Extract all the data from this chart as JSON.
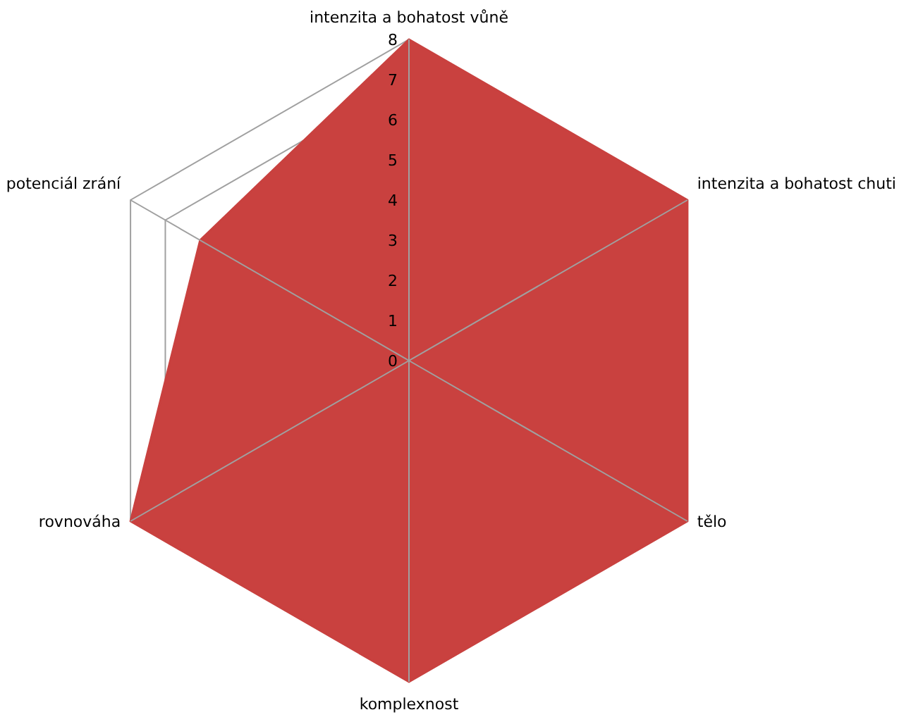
{
  "chart_data": {
    "type": "radar",
    "categories": [
      "intenzita a bohatost vůně",
      "intenzita a bohatost chuti",
      "tělo",
      "komplexnost",
      "rovnováha",
      "potenciál zrání"
    ],
    "series": [
      {
        "color": "#c9413f",
        "values": [
          8,
          8,
          8,
          8,
          8,
          6
        ]
      }
    ],
    "ylim": [
      0,
      8
    ],
    "yticks": [
      0,
      1,
      2,
      3,
      4,
      5,
      6,
      7,
      8
    ],
    "grid": true,
    "legend": false
  }
}
